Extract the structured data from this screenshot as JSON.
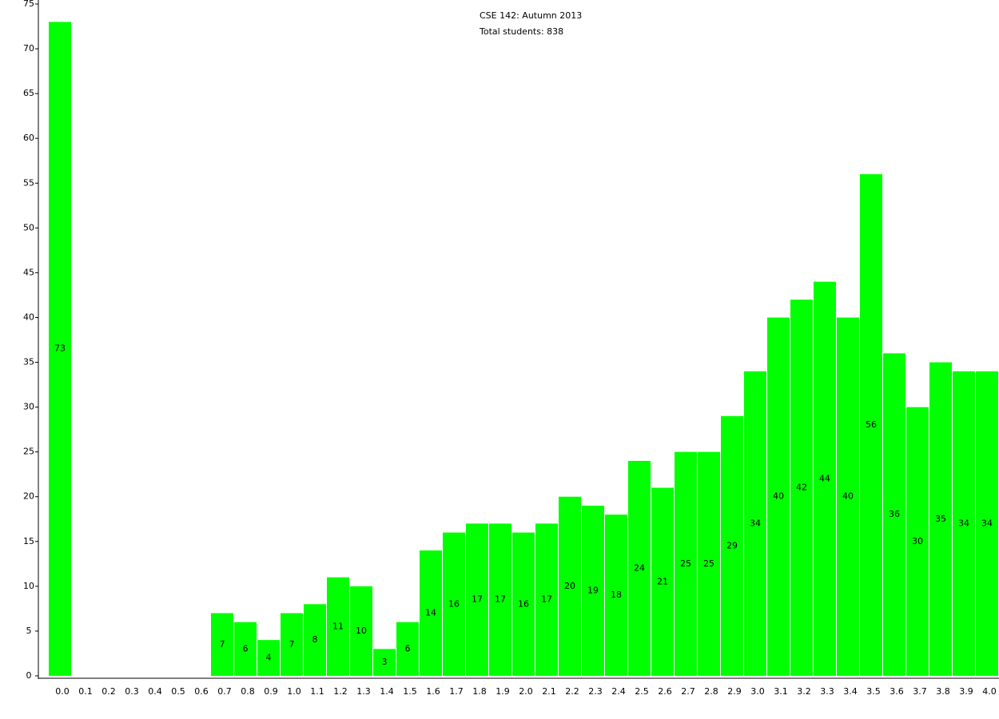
{
  "chart_data": {
    "type": "bar",
    "title": "CSE 142: Autumn 2013",
    "subtitle": "Total students: 838",
    "categories": [
      "0.0",
      "0.1",
      "0.2",
      "0.3",
      "0.4",
      "0.5",
      "0.6",
      "0.7",
      "0.8",
      "0.9",
      "1.0",
      "1.1",
      "1.2",
      "1.3",
      "1.4",
      "1.5",
      "1.6",
      "1.7",
      "1.8",
      "1.9",
      "2.0",
      "2.1",
      "2.2",
      "2.3",
      "2.4",
      "2.5",
      "2.6",
      "2.7",
      "2.8",
      "2.9",
      "3.0",
      "3.1",
      "3.2",
      "3.3",
      "3.4",
      "3.5",
      "3.6",
      "3.7",
      "3.8",
      "3.9",
      "4.0"
    ],
    "values": [
      73,
      0,
      0,
      0,
      0,
      0,
      0,
      7,
      6,
      4,
      7,
      8,
      11,
      10,
      3,
      6,
      14,
      16,
      17,
      17,
      16,
      17,
      20,
      19,
      18,
      24,
      21,
      25,
      25,
      29,
      34,
      40,
      42,
      44,
      40,
      56,
      36,
      30,
      35,
      34,
      34
    ],
    "color": "#00ff00",
    "ylim": [
      0,
      75
    ],
    "yticks": [
      0,
      5,
      10,
      15,
      20,
      25,
      30,
      35,
      40,
      45,
      50,
      55,
      60,
      65,
      70,
      75
    ],
    "grid": false
  }
}
